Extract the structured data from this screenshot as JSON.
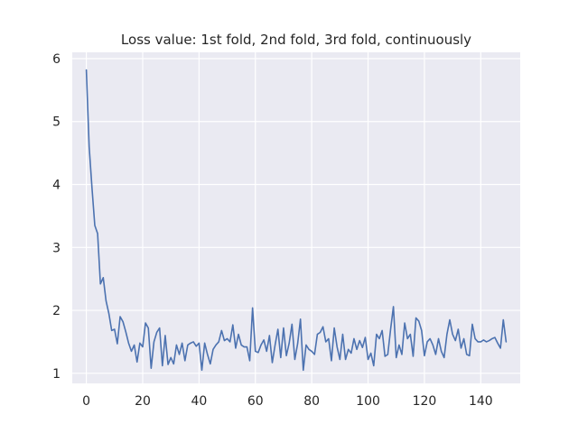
{
  "chart_data": {
    "type": "line",
    "title": "Loss value: 1st fold, 2nd fold, 3rd fold, continuously",
    "xlabel": "",
    "ylabel": "",
    "xlim": [
      -5,
      154
    ],
    "ylim": [
      0.84,
      6.1
    ],
    "grid": true,
    "x_ticks": [
      0,
      20,
      40,
      60,
      80,
      100,
      120,
      140
    ],
    "y_ticks": [
      1,
      2,
      3,
      4,
      5,
      6
    ],
    "series": [
      {
        "color": "#4c72b0",
        "x": [
          0,
          1,
          2,
          3,
          4,
          5,
          6,
          7,
          8,
          9,
          10,
          11,
          12,
          13,
          14,
          15,
          16,
          17,
          18,
          19,
          20,
          21,
          22,
          23,
          24,
          25,
          26,
          27,
          28,
          29,
          30,
          31,
          32,
          33,
          34,
          35,
          36,
          37,
          38,
          39,
          40,
          41,
          42,
          43,
          44,
          45,
          46,
          47,
          48,
          49,
          50,
          51,
          52,
          53,
          54,
          55,
          56,
          57,
          58,
          59,
          60,
          61,
          62,
          63,
          64,
          65,
          66,
          67,
          68,
          69,
          70,
          71,
          72,
          73,
          74,
          75,
          76,
          77,
          78,
          79,
          80,
          81,
          82,
          83,
          84,
          85,
          86,
          87,
          88,
          89,
          90,
          91,
          92,
          93,
          94,
          95,
          96,
          97,
          98,
          99,
          100,
          101,
          102,
          103,
          104,
          105,
          106,
          107,
          108,
          109,
          110,
          111,
          112,
          113,
          114,
          115,
          116,
          117,
          118,
          119,
          120,
          121,
          122,
          123,
          124,
          125,
          126,
          127,
          128,
          129,
          130,
          131,
          132,
          133,
          134,
          135,
          136,
          137,
          138,
          139,
          140,
          141,
          142,
          143,
          144,
          145,
          146,
          147,
          148,
          149
        ],
        "values": [
          5.82,
          4.6,
          3.95,
          3.35,
          3.22,
          2.42,
          2.52,
          2.15,
          1.95,
          1.68,
          1.7,
          1.47,
          1.9,
          1.82,
          1.66,
          1.48,
          1.35,
          1.45,
          1.18,
          1.48,
          1.42,
          1.8,
          1.72,
          1.08,
          1.5,
          1.65,
          1.72,
          1.12,
          1.6,
          1.14,
          1.25,
          1.15,
          1.45,
          1.3,
          1.48,
          1.2,
          1.45,
          1.48,
          1.5,
          1.43,
          1.48,
          1.05,
          1.48,
          1.3,
          1.15,
          1.38,
          1.45,
          1.5,
          1.68,
          1.52,
          1.55,
          1.5,
          1.77,
          1.4,
          1.62,
          1.45,
          1.42,
          1.42,
          1.2,
          2.04,
          1.35,
          1.33,
          1.45,
          1.53,
          1.35,
          1.6,
          1.17,
          1.45,
          1.7,
          1.25,
          1.72,
          1.28,
          1.48,
          1.78,
          1.22,
          1.47,
          1.86,
          1.05,
          1.45,
          1.38,
          1.35,
          1.3,
          1.62,
          1.65,
          1.74,
          1.5,
          1.55,
          1.2,
          1.72,
          1.42,
          1.22,
          1.62,
          1.22,
          1.38,
          1.32,
          1.55,
          1.38,
          1.52,
          1.41,
          1.57,
          1.22,
          1.32,
          1.12,
          1.62,
          1.55,
          1.68,
          1.27,
          1.3,
          1.7,
          2.06,
          1.25,
          1.45,
          1.3,
          1.8,
          1.55,
          1.62,
          1.27,
          1.88,
          1.83,
          1.68,
          1.28,
          1.5,
          1.55,
          1.45,
          1.3,
          1.55,
          1.35,
          1.25,
          1.62,
          1.85,
          1.62,
          1.52,
          1.7,
          1.4,
          1.55,
          1.3,
          1.28,
          1.78,
          1.55,
          1.5,
          1.5,
          1.53,
          1.5,
          1.52,
          1.55,
          1.57,
          1.48,
          1.4,
          1.85,
          1.5
        ]
      }
    ]
  }
}
